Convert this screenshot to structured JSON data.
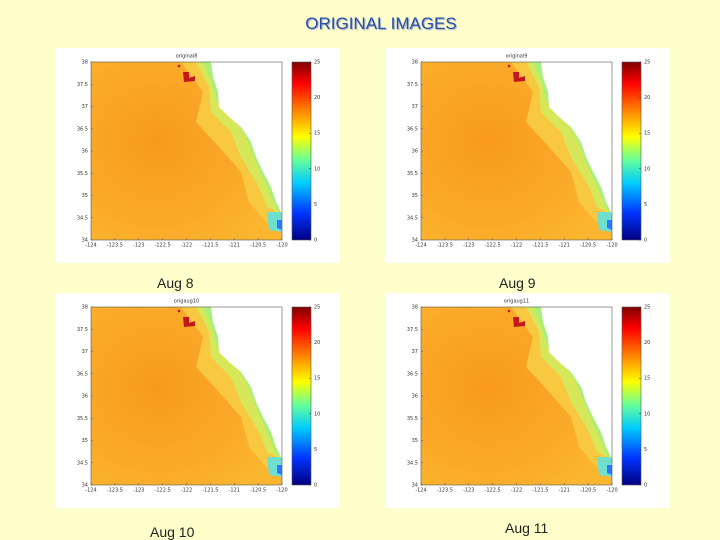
{
  "title": "ORIGINAL IMAGES",
  "map_axes": {
    "xticks": [
      -124,
      -123.5,
      -123,
      -122.5,
      -122,
      -121.5,
      -121,
      -120.5,
      -120
    ],
    "yticks": [
      38,
      37.5,
      37,
      36.5,
      36,
      35.5,
      35,
      34.5,
      34
    ],
    "colorbar_ticks": [
      25,
      20,
      15,
      10,
      5,
      0
    ]
  },
  "panels": [
    {
      "plot_title": "original8",
      "caption": "Aug 8"
    },
    {
      "plot_title": "original9",
      "caption": "Aug 9"
    },
    {
      "plot_title": "origaug10",
      "caption": "Aug 10"
    },
    {
      "plot_title": "origaug11",
      "caption": "Aug 11"
    }
  ]
}
